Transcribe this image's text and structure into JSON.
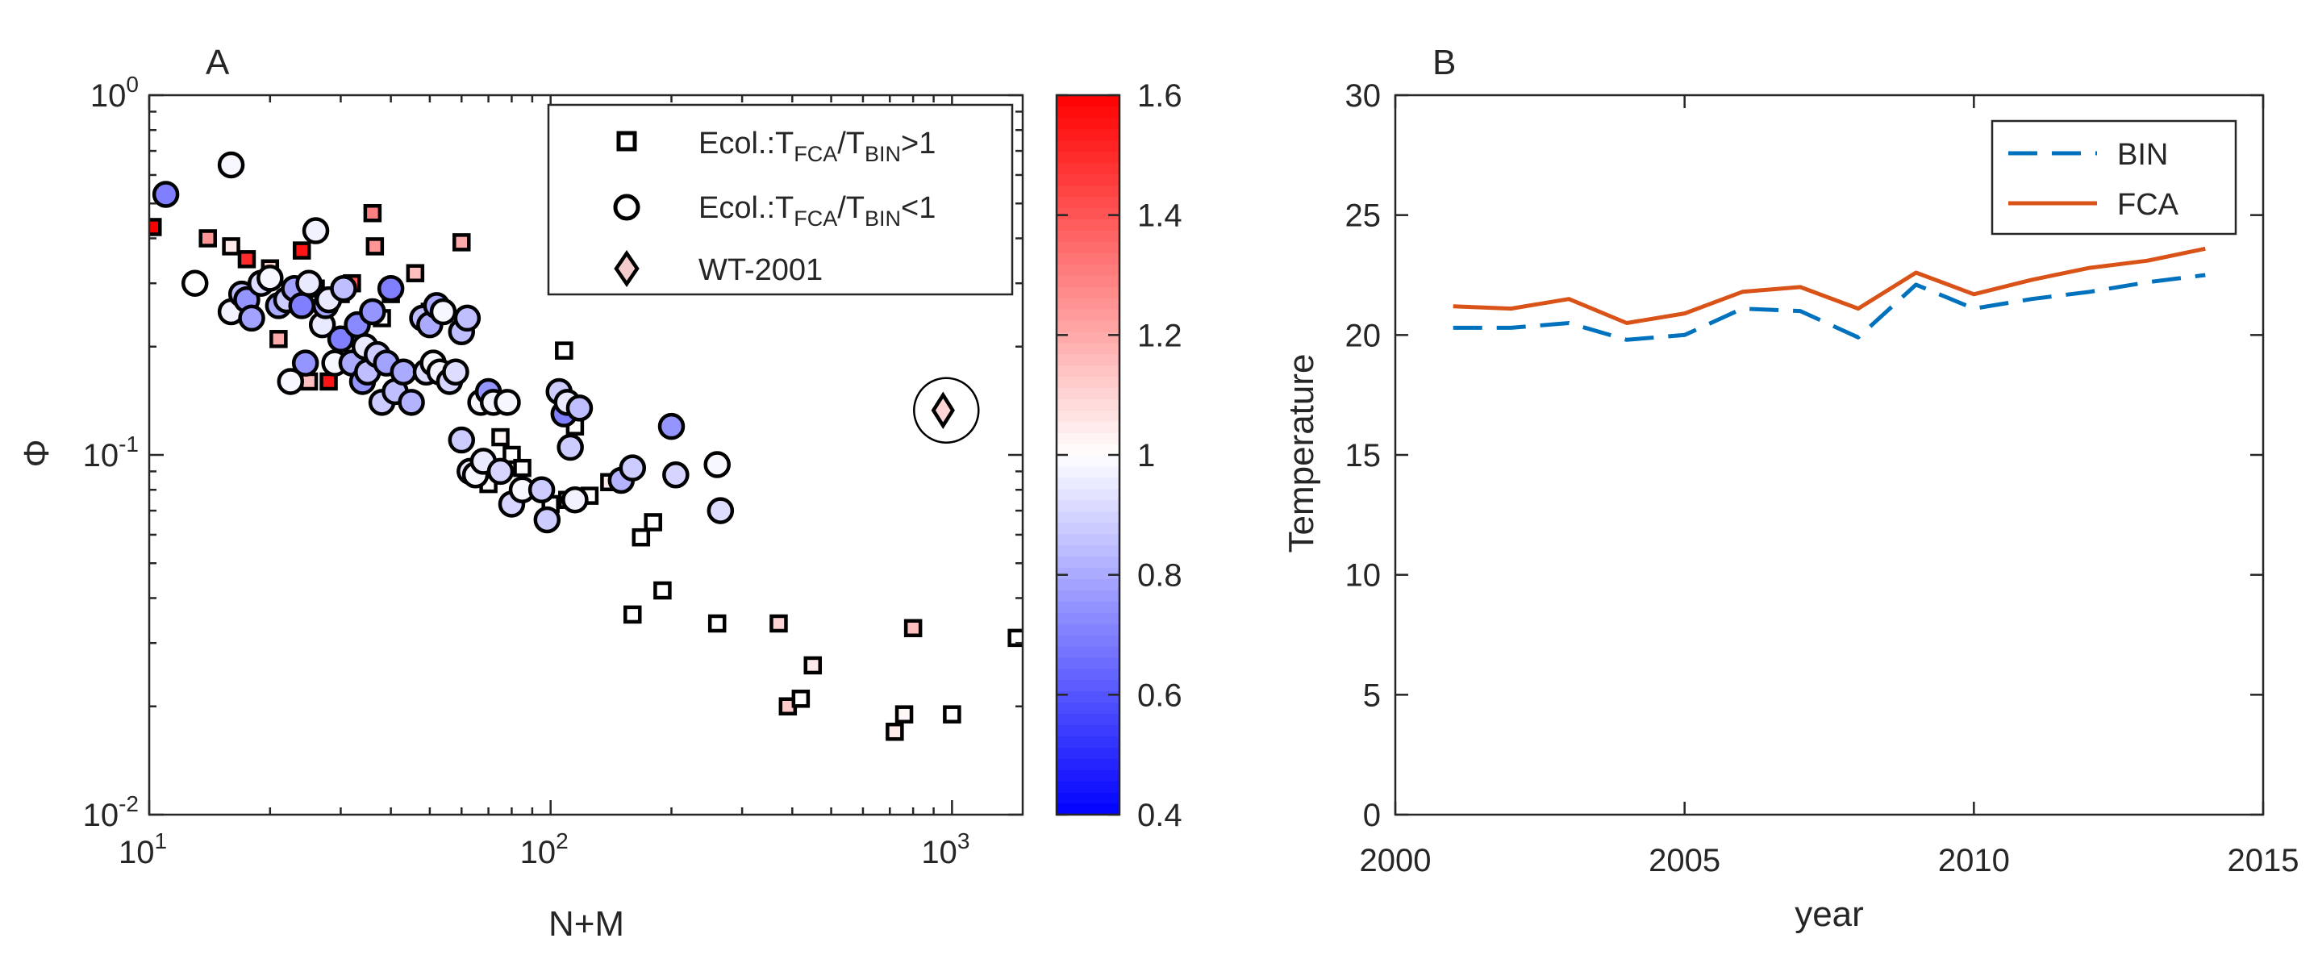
{
  "chart_data": [
    {
      "type": "scatter",
      "panel_label": "A",
      "xlabel": "N+M",
      "ylabel": "Φ",
      "x_scale": "log",
      "y_scale": "log",
      "xlim": [
        10,
        1500
      ],
      "ylim": [
        0.01,
        1
      ],
      "xtick_labels": [
        {
          "value": 10,
          "base": "10",
          "exp": "1"
        },
        {
          "value": 100,
          "base": "10",
          "exp": "2"
        },
        {
          "value": 1000,
          "base": "10",
          "exp": "3"
        }
      ],
      "ytick_labels": [
        {
          "value": 0.01,
          "base": "10",
          "exp": "-2"
        },
        {
          "value": 0.1,
          "base": "10",
          "exp": "-1"
        },
        {
          "value": 1,
          "base": "10",
          "exp": "0"
        }
      ],
      "legend": [
        {
          "marker": "square",
          "text_main": "Ecol.:T",
          "sub1": "FCA",
          "mid": "/T",
          "sub2": "BIN",
          "tail": ">1"
        },
        {
          "marker": "circle",
          "text_main": "Ecol.:T",
          "sub1": "FCA",
          "mid": "/T",
          "sub2": "BIN",
          "tail": "<1"
        },
        {
          "marker": "diamond",
          "text": "WT-2001"
        }
      ],
      "colorbar": {
        "min": 0.4,
        "max": 1.6,
        "tick_labels": [
          "0.4",
          "0.6",
          "0.8",
          "1",
          "1.2",
          "1.4",
          "1.6"
        ],
        "tick_values": [
          0.4,
          0.6,
          0.8,
          1.0,
          1.2,
          1.4,
          1.6
        ]
      },
      "squares": [
        [
          10.2,
          0.43,
          1.6
        ],
        [
          14,
          0.4,
          1.25
        ],
        [
          16,
          0.38,
          1.05
        ],
        [
          17.5,
          0.35,
          1.5
        ],
        [
          20,
          0.33,
          1.1
        ],
        [
          21,
          0.21,
          1.2
        ],
        [
          24,
          0.37,
          1.55
        ],
        [
          25,
          0.16,
          1.15
        ],
        [
          26,
          0.29,
          1.05
        ],
        [
          28,
          0.16,
          1.55
        ],
        [
          30,
          0.28,
          1.2
        ],
        [
          32,
          0.3,
          1.4
        ],
        [
          34,
          0.19,
          1.05
        ],
        [
          36,
          0.47,
          1.3
        ],
        [
          36.5,
          0.38,
          1.25
        ],
        [
          38,
          0.24,
          1.0
        ],
        [
          40,
          0.28,
          1.2
        ],
        [
          46,
          0.32,
          1.15
        ],
        [
          50,
          0.25,
          1.05
        ],
        [
          60,
          0.39,
          1.2
        ],
        [
          70,
          0.083,
          1.0
        ],
        [
          75,
          0.112,
          1.02
        ],
        [
          80,
          0.1,
          1.0
        ],
        [
          85,
          0.092,
          1.0
        ],
        [
          100,
          0.073,
          1.0
        ],
        [
          108,
          0.195,
          1.0
        ],
        [
          110,
          0.075,
          1.05
        ],
        [
          115,
          0.12,
          1.0
        ],
        [
          125,
          0.077,
          1.0
        ],
        [
          140,
          0.084,
          1.05
        ],
        [
          160,
          0.036,
          1.0
        ],
        [
          168,
          0.059,
          1.0
        ],
        [
          180,
          0.065,
          1.0
        ],
        [
          190,
          0.042,
          1.0
        ],
        [
          260,
          0.034,
          1.0
        ],
        [
          370,
          0.034,
          1.1
        ],
        [
          390,
          0.02,
          1.12
        ],
        [
          420,
          0.021,
          1.0
        ],
        [
          450,
          0.026,
          1.05
        ],
        [
          720,
          0.017,
          1.05
        ],
        [
          760,
          0.019,
          1.02
        ],
        [
          800,
          0.033,
          1.15
        ],
        [
          1000,
          0.019,
          1.0
        ],
        [
          1450,
          0.031,
          1.0
        ]
      ],
      "circles": [
        [
          11,
          0.53,
          0.7
        ],
        [
          13,
          0.3,
          1.0
        ],
        [
          16,
          0.64,
          0.98
        ],
        [
          16,
          0.25,
          0.97
        ],
        [
          17,
          0.28,
          0.85
        ],
        [
          17.5,
          0.27,
          0.75
        ],
        [
          18,
          0.24,
          0.78
        ],
        [
          19,
          0.3,
          0.92
        ],
        [
          20,
          0.31,
          0.98
        ],
        [
          21,
          0.26,
          0.8
        ],
        [
          22,
          0.27,
          0.88
        ],
        [
          22.5,
          0.16,
          0.98
        ],
        [
          23,
          0.29,
          0.78
        ],
        [
          24,
          0.26,
          0.7
        ],
        [
          24.5,
          0.18,
          0.75
        ],
        [
          25,
          0.3,
          0.95
        ],
        [
          26,
          0.42,
          0.97
        ],
        [
          27,
          0.23,
          0.95
        ],
        [
          27.5,
          0.26,
          0.78
        ],
        [
          28,
          0.27,
          0.95
        ],
        [
          29,
          0.18,
          0.98
        ],
        [
          30,
          0.21,
          0.7
        ],
        [
          30.5,
          0.29,
          0.85
        ],
        [
          32,
          0.18,
          0.8
        ],
        [
          33,
          0.23,
          0.72
        ],
        [
          34,
          0.16,
          0.75
        ],
        [
          34.5,
          0.2,
          0.95
        ],
        [
          35,
          0.17,
          0.85
        ],
        [
          36,
          0.25,
          0.75
        ],
        [
          37,
          0.19,
          0.88
        ],
        [
          38,
          0.14,
          0.88
        ],
        [
          39,
          0.18,
          0.78
        ],
        [
          40,
          0.29,
          0.7
        ],
        [
          41,
          0.15,
          0.85
        ],
        [
          43,
          0.17,
          0.8
        ],
        [
          45,
          0.14,
          0.82
        ],
        [
          48,
          0.24,
          0.85
        ],
        [
          49,
          0.17,
          0.92
        ],
        [
          50,
          0.23,
          0.8
        ],
        [
          51,
          0.18,
          0.98
        ],
        [
          52,
          0.26,
          0.8
        ],
        [
          53,
          0.17,
          0.97
        ],
        [
          54,
          0.25,
          0.98
        ],
        [
          56,
          0.16,
          0.9
        ],
        [
          58,
          0.17,
          0.92
        ],
        [
          60,
          0.22,
          0.85
        ],
        [
          62,
          0.24,
          0.85
        ],
        [
          60,
          0.11,
          0.88
        ],
        [
          63,
          0.09,
          0.95
        ],
        [
          65,
          0.088,
          0.98
        ],
        [
          67,
          0.14,
          0.98
        ],
        [
          68,
          0.096,
          0.95
        ],
        [
          70,
          0.15,
          0.75
        ],
        [
          72,
          0.14,
          0.97
        ],
        [
          75,
          0.09,
          0.9
        ],
        [
          78,
          0.14,
          0.98
        ],
        [
          80,
          0.073,
          0.9
        ],
        [
          85,
          0.08,
          0.98
        ],
        [
          95,
          0.08,
          0.88
        ],
        [
          98,
          0.066,
          0.88
        ],
        [
          105,
          0.15,
          0.88
        ],
        [
          108,
          0.13,
          0.7
        ],
        [
          110,
          0.14,
          0.95
        ],
        [
          112,
          0.105,
          0.88
        ],
        [
          115,
          0.075,
          0.97
        ],
        [
          118,
          0.135,
          0.85
        ],
        [
          150,
          0.085,
          0.82
        ],
        [
          160,
          0.092,
          0.88
        ],
        [
          200,
          0.12,
          0.75
        ],
        [
          205,
          0.088,
          0.9
        ],
        [
          260,
          0.094,
          0.98
        ],
        [
          265,
          0.07,
          0.92
        ]
      ],
      "diamond": [
        950,
        0.133,
        1.1
      ]
    },
    {
      "type": "line",
      "panel_label": "B",
      "xlabel": "year",
      "ylabel": "Temperature",
      "xlim": [
        2000,
        2015
      ],
      "ylim": [
        0,
        30
      ],
      "xticks": [
        2000,
        2005,
        2010,
        2015
      ],
      "yticks": [
        0,
        5,
        10,
        15,
        20,
        25,
        30
      ],
      "xtick_labels": [
        "2000",
        "2005",
        "2010",
        "2015"
      ],
      "ytick_labels": [
        "0",
        "5",
        "10",
        "15",
        "20",
        "25",
        "30"
      ],
      "x": [
        2001,
        2002,
        2003,
        2004,
        2005,
        2006,
        2007,
        2008,
        2009,
        2010,
        2011,
        2012,
        2013,
        2014
      ],
      "series": [
        {
          "name": "BIN",
          "style": "dashed",
          "color": "#0072BD",
          "values": [
            20.3,
            20.3,
            20.5,
            19.8,
            20.0,
            21.1,
            21.0,
            19.9,
            22.1,
            21.1,
            21.5,
            21.8,
            22.2,
            22.5
          ]
        },
        {
          "name": "FCA",
          "style": "solid",
          "color": "#D95319",
          "values": [
            21.2,
            21.1,
            21.5,
            20.5,
            20.9,
            21.8,
            22.0,
            21.1,
            22.6,
            21.7,
            22.3,
            22.8,
            23.1,
            23.6
          ]
        }
      ]
    }
  ]
}
